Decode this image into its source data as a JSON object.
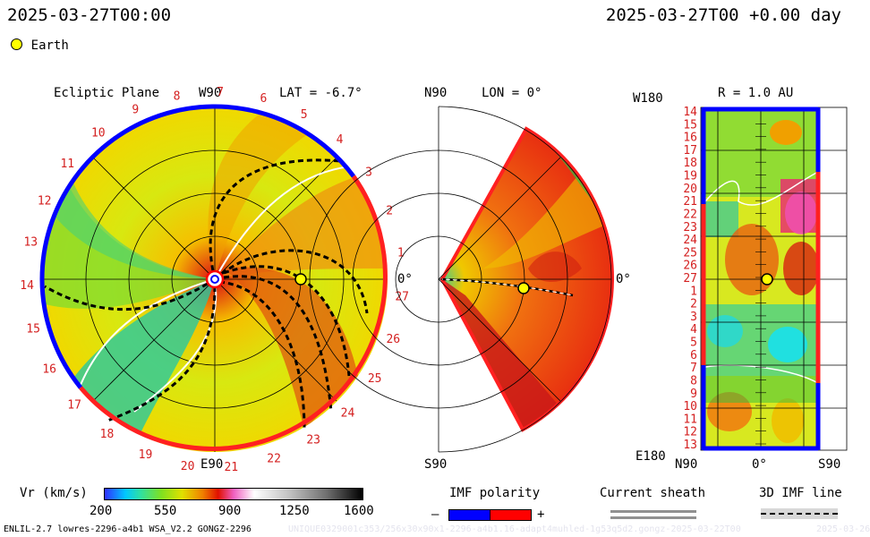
{
  "header": {
    "timestamp_left": "2025-03-27T00:00",
    "timestamp_right": "2025-03-27T00 +0.00 day"
  },
  "legend": {
    "earth_label": "Earth",
    "earth_color": "#ffff00"
  },
  "ecliptic": {
    "title": "Ecliptic Plane",
    "top_label": "W90",
    "bottom_label": "E90",
    "right_label": "0°",
    "lat_label": "LAT = -6.7°",
    "sector_numbers": [
      "1",
      "2",
      "3",
      "4",
      "5",
      "6",
      "7",
      "8",
      "9",
      "10",
      "11",
      "12",
      "13",
      "14",
      "15",
      "16",
      "17",
      "18",
      "19",
      "20",
      "21",
      "22",
      "23",
      "24",
      "25",
      "26",
      "27"
    ]
  },
  "meridional": {
    "top_label": "N90",
    "bottom_label": "S90",
    "lon_label": "LON = 0°",
    "right_label": "0°"
  },
  "radial": {
    "r_label": "R = 1.0 AU",
    "top_left_label": "W180",
    "bottom_left_label": "E180",
    "bottom_labels": [
      "N90",
      "0°",
      "S90"
    ],
    "sector_numbers": [
      "14",
      "15",
      "16",
      "17",
      "18",
      "19",
      "20",
      "21",
      "22",
      "23",
      "24",
      "25",
      "26",
      "27",
      "1",
      "2",
      "3",
      "4",
      "5",
      "6",
      "7",
      "8",
      "9",
      "10",
      "11",
      "12",
      "13"
    ]
  },
  "colorbar": {
    "label": "Vr (km/s)",
    "ticks": [
      "200",
      "550",
      "900",
      "1250",
      "1600"
    ]
  },
  "imf_polarity": {
    "label": "IMF polarity",
    "minus": "–",
    "plus": "+",
    "neg_color": "#0000ff",
    "pos_color": "#ff0000"
  },
  "current_sheath": {
    "label": "Current sheath"
  },
  "imf_line": {
    "label": "3D IMF line"
  },
  "footer": {
    "model_info": "ENLIL-2.7 lowres-2296-a4b1 WSA_V2.2 GONGZ-2296",
    "watermark": "UNIQUE0329001c353/256x30x90x1-2296-a4b1.16-adapt4muhled-1g53q5d2.gongz-2025-03-22T00",
    "date_stamp": "2025-03-26"
  }
}
